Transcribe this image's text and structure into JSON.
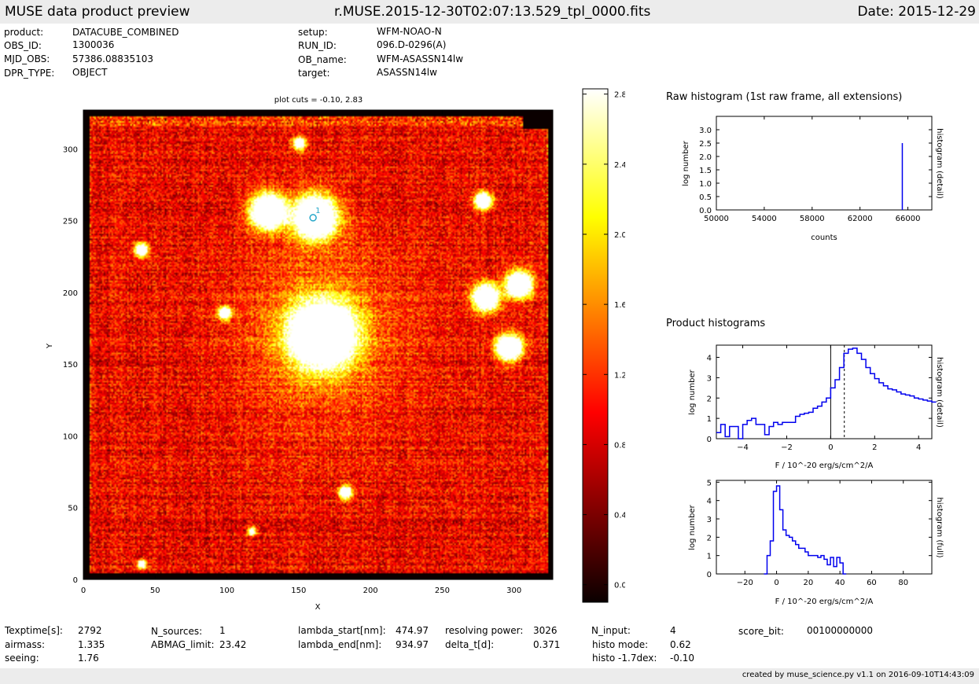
{
  "header": {
    "left": "MUSE data product preview",
    "center": "r.MUSE.2015-12-30T02:07:13.529_tpl_0000.fits",
    "right": "Date: 2015-12-29"
  },
  "meta": [
    {
      "label": "product:",
      "value": "DATACUBE_COMBINED"
    },
    {
      "label": "OBS_ID:",
      "value": "1300036"
    },
    {
      "label": "MJD_OBS:",
      "value": "57386.08835103"
    },
    {
      "label": "DPR_TYPE:",
      "value": "OBJECT"
    },
    {
      "label": "setup:",
      "value": "WFM-NOAO-N"
    },
    {
      "label": "RUN_ID:",
      "value": "096.D-0296(A)"
    },
    {
      "label": "OB_name:",
      "value": "WFM-ASASSN14lw"
    },
    {
      "label": "target:",
      "value": "ASASSN14lw"
    }
  ],
  "footer": [
    {
      "label": "Texptime[s]:",
      "value": "2792"
    },
    {
      "label": "airmass:",
      "value": "1.335"
    },
    {
      "label": "seeing:",
      "value": "1.76"
    },
    {
      "label": "N_sources:",
      "value": "1"
    },
    {
      "label": "ABMAG_limit:",
      "value": "23.42"
    },
    {
      "label": "lambda_start[nm]:",
      "value": "474.97"
    },
    {
      "label": "lambda_end[nm]:",
      "value": "934.97"
    },
    {
      "label": "resolving power:",
      "value": "3026"
    },
    {
      "label": "delta_t[d]:",
      "value": "0.371"
    },
    {
      "label": "N_input:",
      "value": "4"
    },
    {
      "label": "histo mode:",
      "value": "0.62"
    },
    {
      "label": "histo -1.7dex:",
      "value": "-0.10"
    },
    {
      "label": "score_bit:",
      "value": "00100000000"
    }
  ],
  "credit": "created by muse_science.py v1.1 on 2016-09-10T14:43:09",
  "chart_data": [
    {
      "type": "heatmap",
      "title": "plot cuts = -0.10, 2.83",
      "xlabel": "X",
      "ylabel": "Y",
      "xlim": [
        0,
        327
      ],
      "ylim": [
        0,
        327
      ],
      "xticks": [
        0,
        50,
        100,
        150,
        200,
        250,
        300
      ],
      "yticks": [
        0,
        50,
        100,
        150,
        200,
        250,
        300
      ],
      "colormap": "hot",
      "vmin": -0.1,
      "vmax": 2.83,
      "colorbar_ticks": [
        0.0,
        0.4,
        0.8,
        1.2,
        1.6,
        2.0,
        2.4,
        2.8
      ],
      "colorbar_tick_labels": [
        "0.0",
        "0.4",
        "0.8",
        "1.2",
        "1.6",
        "2.0",
        "2.4",
        "2.8"
      ],
      "marker": {
        "label": "1",
        "x": 160,
        "y": 252,
        "color": "#26a7c9"
      },
      "sources": [
        {
          "x": 161,
          "y": 252,
          "r": 10,
          "peak": 3.0
        },
        {
          "x": 128,
          "y": 256,
          "r": 8,
          "peak": 3.0
        },
        {
          "x": 166,
          "y": 170,
          "r": 15,
          "peak": 3.0
        },
        {
          "x": 280,
          "y": 196,
          "r": 6,
          "peak": 2.9
        },
        {
          "x": 303,
          "y": 205,
          "r": 6,
          "peak": 2.9
        },
        {
          "x": 296,
          "y": 161,
          "r": 6,
          "peak": 2.9
        },
        {
          "x": 278,
          "y": 263,
          "r": 4,
          "peak": 2.6
        },
        {
          "x": 40,
          "y": 229,
          "r": 3,
          "peak": 2.5
        },
        {
          "x": 98,
          "y": 185,
          "r": 3,
          "peak": 2.2
        },
        {
          "x": 40,
          "y": 10,
          "r": 2,
          "peak": 2.2
        },
        {
          "x": 182,
          "y": 60,
          "r": 3,
          "peak": 2.3
        },
        {
          "x": 150,
          "y": 303,
          "r": 3,
          "peak": 1.9
        },
        {
          "x": 117,
          "y": 33,
          "r": 2,
          "peak": 1.8
        }
      ]
    },
    {
      "type": "line",
      "title": "Raw histogram (1st raw frame, all extensions)",
      "xlabel": "counts",
      "ylabel": "log number",
      "ylabel_right": "histogram (detail)",
      "xlim": [
        50000,
        68000
      ],
      "ylim": [
        0,
        3.5
      ],
      "xticks": [
        50000,
        54000,
        58000,
        62000,
        66000
      ],
      "yticks": [
        0.0,
        0.5,
        1.0,
        1.5,
        2.0,
        2.5,
        3.0
      ],
      "ytick_labels": [
        "0.0",
        "0.5",
        "1.0",
        "1.5",
        "2.0",
        "2.5",
        "3.0"
      ],
      "series": [
        {
          "x": [
            65535,
            65535
          ],
          "values": [
            0,
            2.5
          ]
        }
      ]
    },
    {
      "type": "line",
      "title": "Product histograms",
      "xlabel": "F / 10^-20 erg/s/cm^2/A",
      "ylabel": "log number",
      "ylabel_right": "histogram (detail)",
      "xlim": [
        -5.2,
        4.6
      ],
      "ylim": [
        0,
        4.6
      ],
      "xticks": [
        -4,
        -2,
        0,
        2,
        4
      ],
      "xtick_labels": [
        "−4",
        "−2",
        "0",
        "2",
        "4"
      ],
      "yticks": [
        0,
        1,
        2,
        3,
        4
      ],
      "vlines": [
        {
          "x": 0,
          "style": "solid"
        },
        {
          "x": 0.62,
          "style": "dotted"
        }
      ],
      "series": [
        {
          "x": [
            -5.2,
            -5.0,
            -4.8,
            -4.6,
            -4.4,
            -4.2,
            -4.0,
            -3.8,
            -3.6,
            -3.4,
            -3.2,
            -3.0,
            -2.8,
            -2.6,
            -2.4,
            -2.2,
            -2.0,
            -1.8,
            -1.6,
            -1.4,
            -1.2,
            -1.0,
            -0.8,
            -0.6,
            -0.4,
            -0.2,
            0.0,
            0.2,
            0.4,
            0.6,
            0.8,
            1.0,
            1.2,
            1.4,
            1.6,
            1.8,
            2.0,
            2.2,
            2.4,
            2.6,
            2.8,
            3.0,
            3.2,
            3.4,
            3.6,
            3.8,
            4.0,
            4.2,
            4.4,
            4.6
          ],
          "values": [
            0.3,
            0.7,
            0.1,
            0.6,
            0.6,
            0,
            0.7,
            0.9,
            1.0,
            0.7,
            0.7,
            0.2,
            0.6,
            0.8,
            0.7,
            0.8,
            0.8,
            0.8,
            1.1,
            1.2,
            1.25,
            1.3,
            1.5,
            1.6,
            1.8,
            2.0,
            2.5,
            2.9,
            3.5,
            4.2,
            4.4,
            4.45,
            4.2,
            3.9,
            3.5,
            3.2,
            2.95,
            2.75,
            2.6,
            2.45,
            2.4,
            2.3,
            2.2,
            2.15,
            2.1,
            2.0,
            1.95,
            1.9,
            1.85,
            1.8
          ]
        }
      ]
    },
    {
      "type": "line",
      "title": "",
      "xlabel": "F / 10^-20 erg/s/cm^2/A",
      "ylabel": "log number",
      "ylabel_right": "histogram (full)",
      "xlim": [
        -38,
        98
      ],
      "ylim": [
        0,
        5.1
      ],
      "xticks": [
        -20,
        0,
        20,
        40,
        60,
        80
      ],
      "xtick_labels": [
        "−20",
        "0",
        "20",
        "40",
        "60",
        "80"
      ],
      "yticks": [
        0,
        1,
        2,
        3,
        4,
        5
      ],
      "series": [
        {
          "x": [
            -8,
            -6,
            -4,
            -2,
            0,
            2,
            4,
            6,
            8,
            10,
            12,
            14,
            16,
            18,
            20,
            22,
            24,
            26,
            28,
            30,
            32,
            34,
            36,
            38,
            40,
            42
          ],
          "values": [
            0,
            1.0,
            1.8,
            4.5,
            4.8,
            3.5,
            2.4,
            2.1,
            2.0,
            1.8,
            1.6,
            1.4,
            1.4,
            1.2,
            1.0,
            1.0,
            1.0,
            0.9,
            1.0,
            0.8,
            0.5,
            0.9,
            0.4,
            0.9,
            0.6,
            0
          ]
        }
      ]
    }
  ]
}
